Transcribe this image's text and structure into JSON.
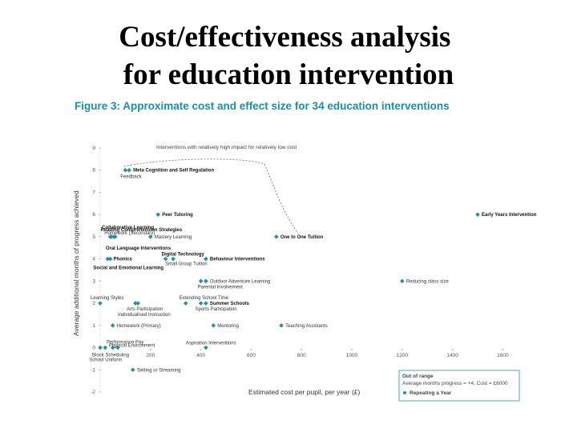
{
  "title": "Cost/effectiveness analysis for education intervention",
  "chart_data": {
    "type": "scatter",
    "title": "Figure 3: Approximate cost and effect size for 34 education interventions",
    "xlabel": "Estimated cost per pupil, per year (£)",
    "ylabel": "Average additional months of progress achieved",
    "annotation": "Interventions with relatively high impact for relatively low cost",
    "out_of_range": {
      "title": "Out of range",
      "text": "Average months progress = +4, Cost = £6000",
      "label": "Repeating a Year"
    },
    "color": "#2a8fa6",
    "labels": [
      "Meta Cognition and Self Regulation",
      "Feedback",
      "Peer Tutoring",
      "Collaborative Learning",
      "Homework (Secondary)",
      "Reading Comprehension Strategies",
      "Mastery Learning",
      "Oral Language Interventions",
      "One to One Tuition",
      "Early Years Intervention",
      "Phonics",
      "Social and Emotional Learning",
      "Digital Technology",
      "Small Group Tuition",
      "Behaviour Interventions",
      "Outdoor Adventure Learning",
      "Parental Involvement",
      "Reducing class size",
      "Learning Styles",
      "Arts Participation",
      "Individualised Instruction",
      "Extending School Time",
      "Summer Schools",
      "Sports Participation",
      "Homework (Primary)",
      "Mentoring",
      "Teaching Assistants",
      "Performance Pay",
      "Physical Environment",
      "Block Scheduling",
      "School Uniform",
      "Aspiration Interventions",
      "Setting or Streaming"
    ],
    "x": [
      115,
      100,
      230,
      45,
      55,
      40,
      200,
      60,
      700,
      1500,
      40,
      30,
      260,
      290,
      420,
      420,
      400,
      1200,
      0,
      150,
      140,
      340,
      420,
      400,
      50,
      450,
      720,
      70,
      50,
      0,
      20,
      420,
      130
    ],
    "y": [
      8,
      8,
      6,
      5,
      5,
      5,
      5,
      5,
      5,
      6,
      4,
      4,
      4,
      4,
      4,
      3,
      3,
      3,
      2,
      2,
      2,
      2,
      2,
      2,
      1,
      1,
      1,
      0,
      0,
      0,
      0,
      0,
      -1
    ],
    "xlim": [
      0,
      1640
    ],
    "ylim": [
      -2,
      9
    ],
    "xticks": [
      200,
      400,
      600,
      800,
      1000,
      1200,
      1400,
      1600
    ],
    "yticks": [
      -2,
      -1,
      0,
      1,
      2,
      3,
      4,
      5,
      6,
      7,
      8,
      9
    ]
  }
}
